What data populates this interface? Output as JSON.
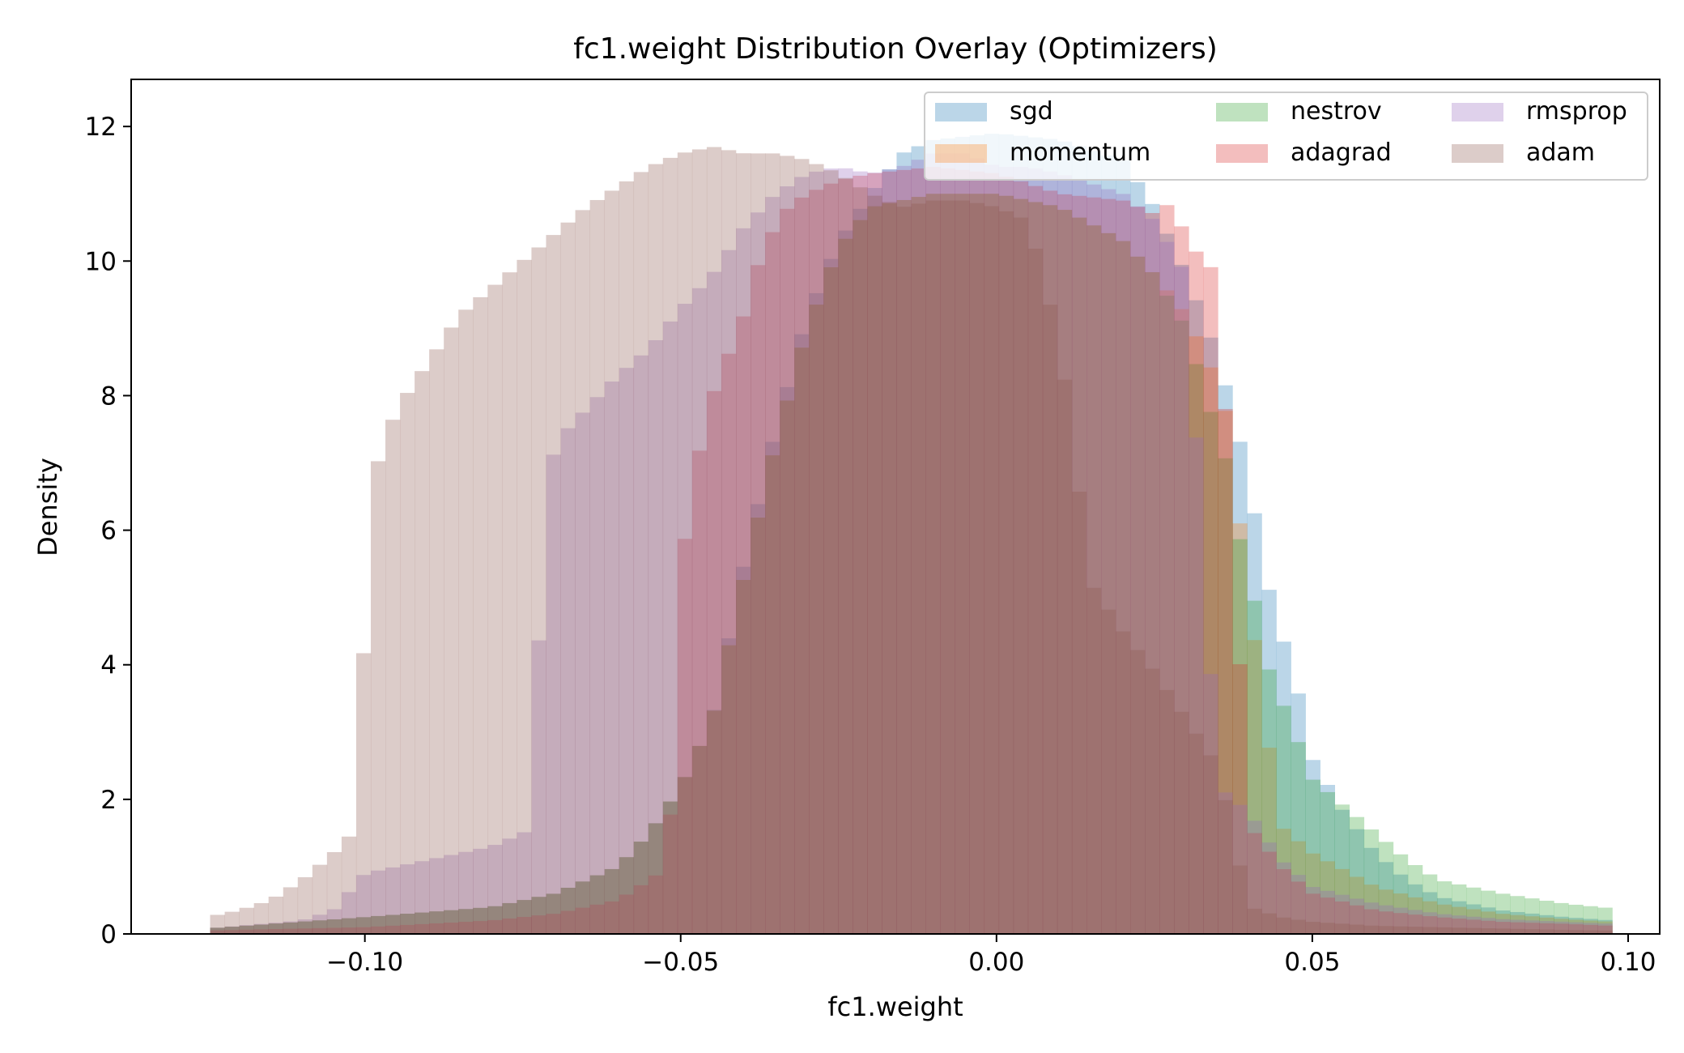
{
  "chart_data": {
    "type": "histogram-overlay",
    "title": "fc1.weight Distribution Overlay (Optimizers)",
    "xlabel": "fc1.weight",
    "ylabel": "Density",
    "xlim": [
      -0.137,
      0.105
    ],
    "ylim": [
      0,
      12.7
    ],
    "xticks": [
      -0.1,
      -0.05,
      0.0,
      0.05,
      0.1
    ],
    "xtick_labels": [
      "−0.10",
      "−0.05",
      "0.00",
      "0.05",
      "0.10"
    ],
    "yticks": [
      0,
      2,
      4,
      6,
      8,
      10,
      12
    ],
    "ytick_labels": [
      "0",
      "2",
      "4",
      "6",
      "8",
      "10",
      "12"
    ],
    "bin_range": [
      -0.1245,
      0.0975
    ],
    "bins": 96,
    "alpha": 0.3,
    "legend": {
      "position": "upper-right",
      "columns": 3
    },
    "series": [
      {
        "name": "sgd",
        "color": "#1f77b4",
        "points": [
          [
            -0.125,
            0.08
          ],
          [
            -0.1,
            0.25
          ],
          [
            -0.08,
            0.4
          ],
          [
            -0.07,
            0.6
          ],
          [
            -0.06,
            1.0
          ],
          [
            -0.055,
            1.5
          ],
          [
            -0.05,
            2.2
          ],
          [
            -0.045,
            3.2
          ],
          [
            -0.04,
            5.5
          ],
          [
            -0.035,
            7.5
          ],
          [
            -0.03,
            9.2
          ],
          [
            -0.025,
            10.3
          ],
          [
            -0.02,
            11.0
          ],
          [
            -0.015,
            11.6
          ],
          [
            -0.01,
            11.8
          ],
          [
            0.0,
            11.9
          ],
          [
            0.01,
            11.8
          ],
          [
            0.02,
            11.5
          ],
          [
            0.025,
            10.8
          ],
          [
            0.03,
            9.8
          ],
          [
            0.035,
            8.6
          ],
          [
            0.038,
            7.5
          ],
          [
            0.04,
            6.8
          ],
          [
            0.042,
            5.5
          ],
          [
            0.045,
            4.5
          ],
          [
            0.048,
            3.5
          ],
          [
            0.05,
            2.6
          ],
          [
            0.055,
            1.8
          ],
          [
            0.06,
            1.2
          ],
          [
            0.065,
            0.8
          ],
          [
            0.07,
            0.55
          ],
          [
            0.08,
            0.35
          ],
          [
            0.09,
            0.25
          ],
          [
            0.0975,
            0.2
          ]
        ]
      },
      {
        "name": "momentum",
        "color": "#ff7f0e",
        "points": [
          [
            -0.125,
            0.08
          ],
          [
            -0.1,
            0.25
          ],
          [
            -0.08,
            0.4
          ],
          [
            -0.07,
            0.6
          ],
          [
            -0.06,
            1.0
          ],
          [
            -0.055,
            1.5
          ],
          [
            -0.05,
            2.2
          ],
          [
            -0.045,
            3.2
          ],
          [
            -0.04,
            5.3
          ],
          [
            -0.035,
            7.3
          ],
          [
            -0.03,
            9.0
          ],
          [
            -0.025,
            10.2
          ],
          [
            -0.02,
            10.8
          ],
          [
            -0.01,
            11.0
          ],
          [
            0.0,
            11.0
          ],
          [
            0.01,
            10.8
          ],
          [
            0.02,
            10.3
          ],
          [
            0.025,
            9.8
          ],
          [
            0.03,
            9.2
          ],
          [
            0.035,
            8.2
          ],
          [
            0.037,
            7.5
          ],
          [
            0.038,
            6.5
          ],
          [
            0.04,
            5.0
          ],
          [
            0.042,
            3.5
          ],
          [
            0.045,
            1.6
          ],
          [
            0.05,
            1.2
          ],
          [
            0.06,
            0.7
          ],
          [
            0.07,
            0.45
          ],
          [
            0.08,
            0.3
          ],
          [
            0.09,
            0.22
          ],
          [
            0.0975,
            0.18
          ]
        ]
      },
      {
        "name": "nestrov",
        "color": "#2ca02c",
        "points": [
          [
            -0.125,
            0.08
          ],
          [
            -0.1,
            0.25
          ],
          [
            -0.08,
            0.4
          ],
          [
            -0.07,
            0.6
          ],
          [
            -0.06,
            1.0
          ],
          [
            -0.055,
            1.5
          ],
          [
            -0.05,
            2.2
          ],
          [
            -0.045,
            3.2
          ],
          [
            -0.04,
            5.3
          ],
          [
            -0.035,
            7.3
          ],
          [
            -0.03,
            9.0
          ],
          [
            -0.025,
            10.2
          ],
          [
            -0.02,
            10.8
          ],
          [
            -0.01,
            11.0
          ],
          [
            0.0,
            11.0
          ],
          [
            0.01,
            10.8
          ],
          [
            0.02,
            10.3
          ],
          [
            0.025,
            9.8
          ],
          [
            0.03,
            9.0
          ],
          [
            0.033,
            8.0
          ],
          [
            0.036,
            7.2
          ],
          [
            0.038,
            6.0
          ],
          [
            0.04,
            5.5
          ],
          [
            0.042,
            4.2
          ],
          [
            0.045,
            3.5
          ],
          [
            0.048,
            2.8
          ],
          [
            0.05,
            2.3
          ],
          [
            0.055,
            1.9
          ],
          [
            0.06,
            1.5
          ],
          [
            0.065,
            1.1
          ],
          [
            0.07,
            0.8
          ],
          [
            0.08,
            0.6
          ],
          [
            0.09,
            0.45
          ],
          [
            0.0975,
            0.38
          ]
        ]
      },
      {
        "name": "adagrad",
        "color": "#d62728",
        "points": [
          [
            -0.125,
            0.05
          ],
          [
            -0.1,
            0.1
          ],
          [
            -0.08,
            0.2
          ],
          [
            -0.07,
            0.3
          ],
          [
            -0.06,
            0.5
          ],
          [
            -0.055,
            0.8
          ],
          [
            -0.052,
            1.0
          ],
          [
            -0.05,
            5.5
          ],
          [
            -0.047,
            7.2
          ],
          [
            -0.045,
            8.0
          ],
          [
            -0.04,
            9.2
          ],
          [
            -0.037,
            10.2
          ],
          [
            -0.033,
            10.8
          ],
          [
            -0.03,
            11.0
          ],
          [
            -0.025,
            11.2
          ],
          [
            -0.02,
            11.3
          ],
          [
            -0.01,
            11.4
          ],
          [
            0.0,
            11.3
          ],
          [
            0.01,
            11.0
          ],
          [
            0.02,
            10.9
          ],
          [
            0.025,
            10.7
          ],
          [
            0.028,
            10.9
          ],
          [
            0.03,
            10.3
          ],
          [
            0.035,
            9.8
          ],
          [
            0.04,
            1.6
          ],
          [
            0.045,
            1.0
          ],
          [
            0.05,
            0.6
          ],
          [
            0.06,
            0.35
          ],
          [
            0.07,
            0.25
          ],
          [
            0.08,
            0.18
          ],
          [
            0.09,
            0.15
          ],
          [
            0.0975,
            0.12
          ]
        ]
      },
      {
        "name": "rmsprop",
        "color": "#9467bd",
        "points": [
          [
            -0.125,
            0.08
          ],
          [
            -0.11,
            0.2
          ],
          [
            -0.105,
            0.35
          ],
          [
            -0.1,
            0.9
          ],
          [
            -0.09,
            1.1
          ],
          [
            -0.08,
            1.3
          ],
          [
            -0.075,
            1.5
          ],
          [
            -0.073,
            1.6
          ],
          [
            -0.072,
            6.8
          ],
          [
            -0.068,
            7.5
          ],
          [
            -0.065,
            7.8
          ],
          [
            -0.06,
            8.3
          ],
          [
            -0.055,
            8.7
          ],
          [
            -0.05,
            9.3
          ],
          [
            -0.045,
            9.8
          ],
          [
            -0.04,
            10.5
          ],
          [
            -0.035,
            11.0
          ],
          [
            -0.03,
            11.3
          ],
          [
            -0.025,
            11.4
          ],
          [
            -0.02,
            11.3
          ],
          [
            -0.015,
            11.4
          ],
          [
            -0.01,
            11.6
          ],
          [
            -0.005,
            11.6
          ],
          [
            0.0,
            11.4
          ],
          [
            0.005,
            11.4
          ],
          [
            0.01,
            11.3
          ],
          [
            0.02,
            11.0
          ],
          [
            0.025,
            10.6
          ],
          [
            0.03,
            9.8
          ],
          [
            0.035,
            2.2
          ],
          [
            0.04,
            1.8
          ],
          [
            0.045,
            1.1
          ],
          [
            0.05,
            0.7
          ],
          [
            0.06,
            0.45
          ],
          [
            0.07,
            0.3
          ],
          [
            0.08,
            0.22
          ],
          [
            0.09,
            0.18
          ],
          [
            0.0975,
            0.15
          ]
        ]
      },
      {
        "name": "adam",
        "color": "#8c564b",
        "points": [
          [
            -0.125,
            0.25
          ],
          [
            -0.12,
            0.35
          ],
          [
            -0.115,
            0.5
          ],
          [
            -0.11,
            0.8
          ],
          [
            -0.105,
            1.2
          ],
          [
            -0.102,
            1.5
          ],
          [
            -0.1,
            4.5
          ],
          [
            -0.098,
            7.0
          ],
          [
            -0.095,
            7.8
          ],
          [
            -0.09,
            8.5
          ],
          [
            -0.085,
            9.2
          ],
          [
            -0.08,
            9.6
          ],
          [
            -0.075,
            10.0
          ],
          [
            -0.07,
            10.4
          ],
          [
            -0.065,
            10.8
          ],
          [
            -0.06,
            11.1
          ],
          [
            -0.055,
            11.4
          ],
          [
            -0.05,
            11.6
          ],
          [
            -0.045,
            11.7
          ],
          [
            -0.04,
            11.6
          ],
          [
            -0.035,
            11.6
          ],
          [
            -0.03,
            11.5
          ],
          [
            -0.025,
            11.3
          ],
          [
            -0.02,
            11.0
          ],
          [
            -0.015,
            10.8
          ],
          [
            -0.01,
            10.9
          ],
          [
            -0.005,
            10.9
          ],
          [
            0.0,
            10.8
          ],
          [
            0.005,
            10.6
          ],
          [
            0.01,
            8.8
          ],
          [
            0.015,
            5.2
          ],
          [
            0.02,
            4.5
          ],
          [
            0.025,
            3.9
          ],
          [
            0.03,
            3.2
          ],
          [
            0.035,
            2.5
          ],
          [
            0.04,
            0.4
          ],
          [
            0.045,
            0.25
          ],
          [
            0.05,
            0.18
          ],
          [
            0.06,
            0.12
          ],
          [
            0.07,
            0.1
          ],
          [
            0.08,
            0.08
          ],
          [
            0.09,
            0.06
          ],
          [
            0.0975,
            0.05
          ]
        ]
      }
    ]
  }
}
